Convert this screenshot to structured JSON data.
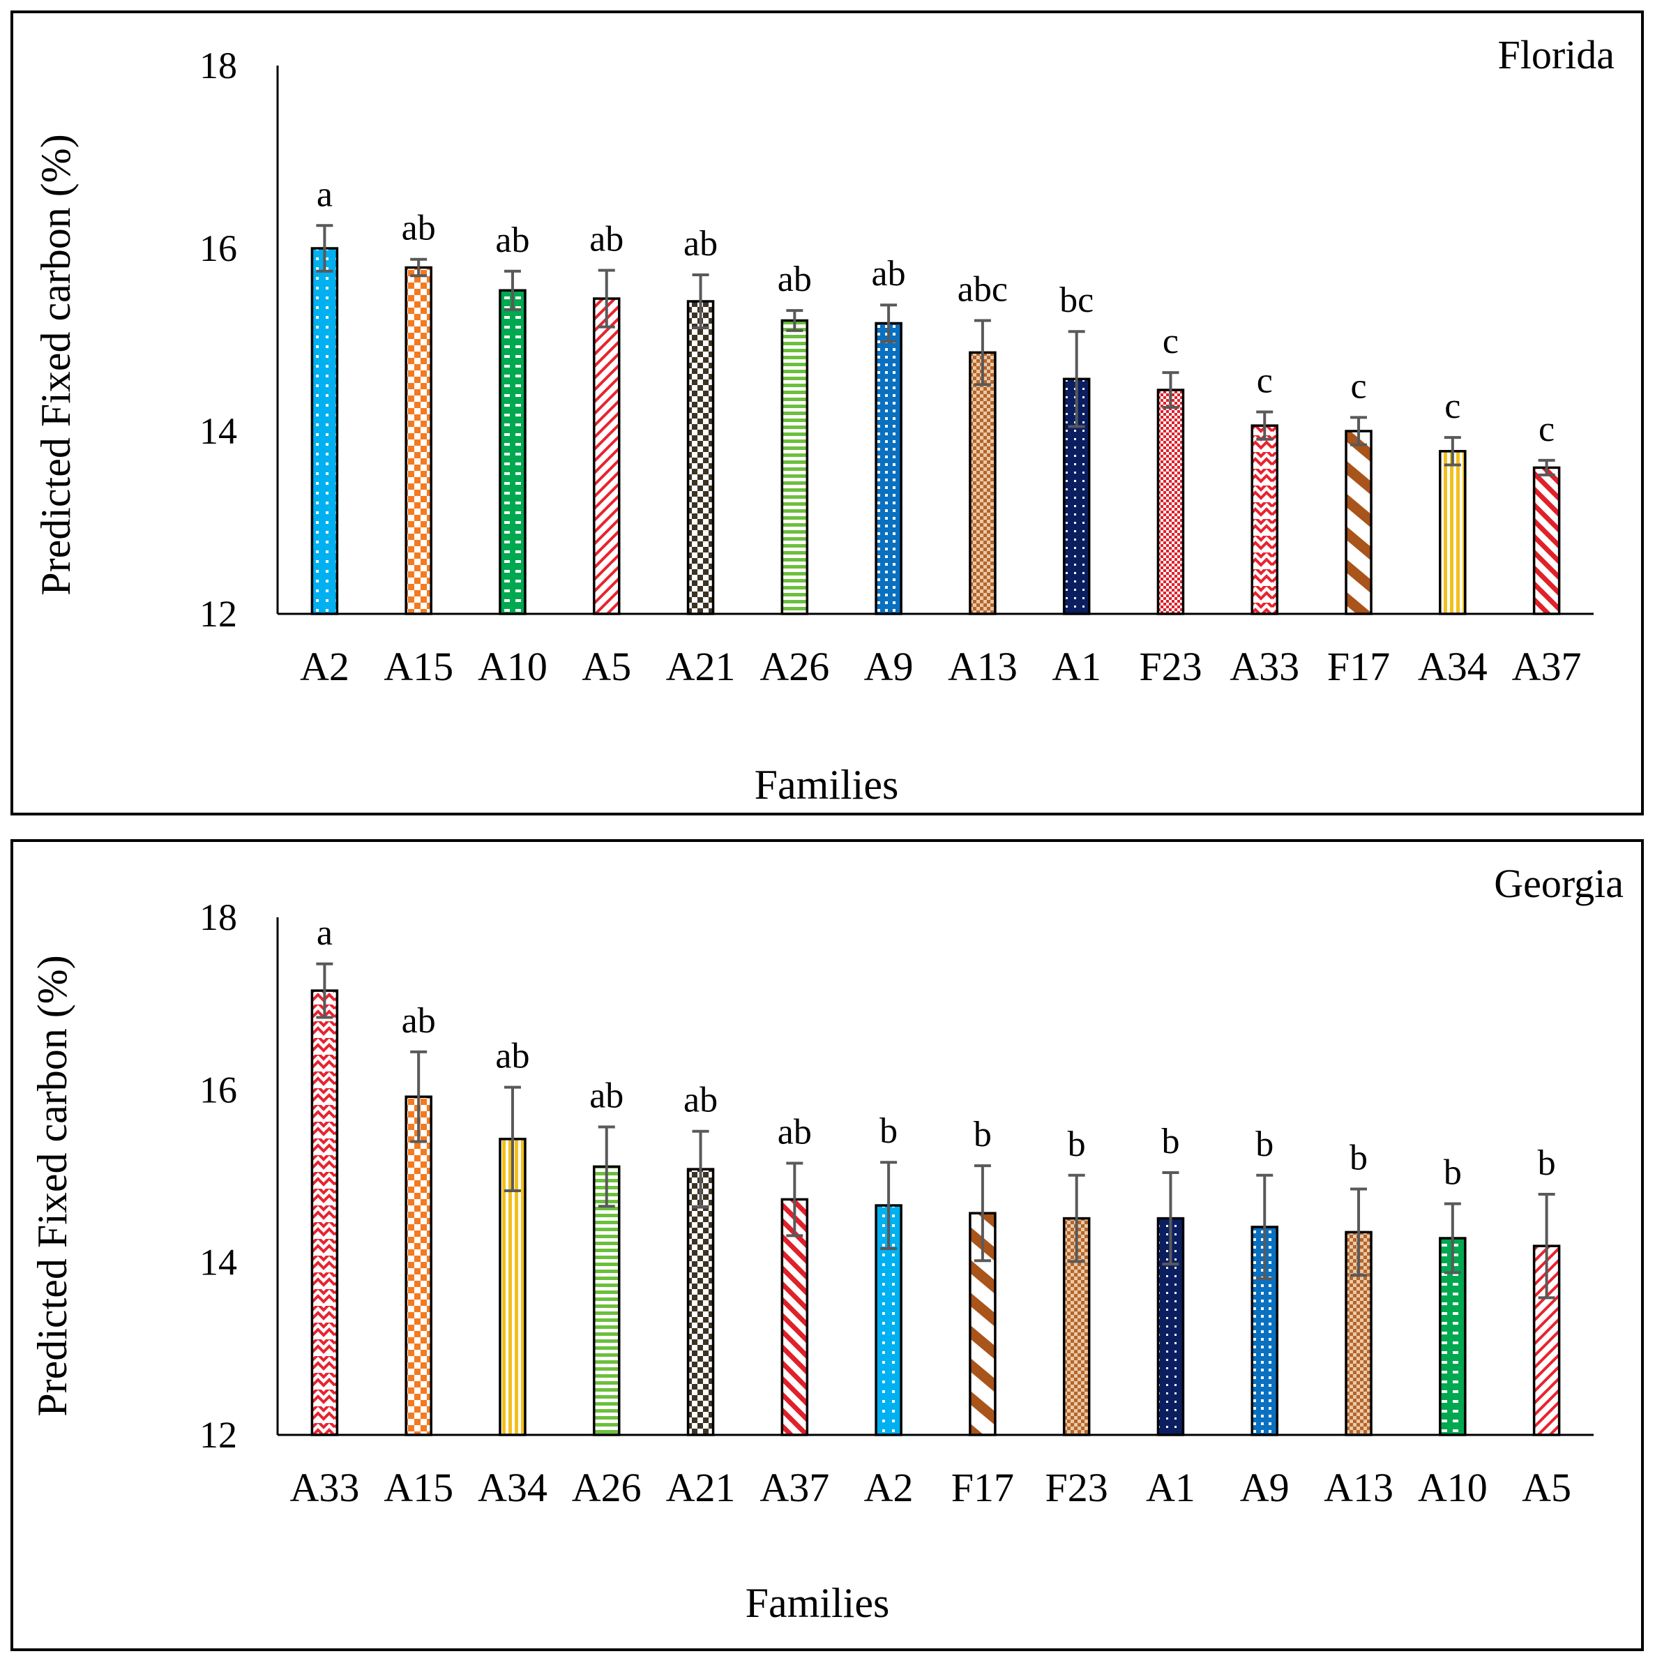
{
  "chart_data": [
    {
      "type": "bar",
      "title": "Florida",
      "xlabel": "Families",
      "ylabel": "Predicted Fixed carbon (%)",
      "ylim": [
        12,
        18
      ],
      "yticks": [
        "12",
        "14",
        "16",
        "18"
      ],
      "categories": [
        "A2",
        "A15",
        "A10",
        "A5",
        "A21",
        "A26",
        "A9",
        "A13",
        "A1",
        "F23",
        "A33",
        "F17",
        "A34",
        "A37"
      ],
      "values": [
        16.0,
        15.79,
        15.54,
        15.45,
        15.42,
        15.21,
        15.18,
        14.86,
        14.57,
        14.45,
        14.06,
        14.0,
        13.78,
        13.6
      ],
      "errors": [
        0.25,
        0.09,
        0.21,
        0.31,
        0.29,
        0.11,
        0.2,
        0.35,
        0.52,
        0.19,
        0.15,
        0.15,
        0.15,
        0.08
      ],
      "significance": [
        "a",
        "ab",
        "ab",
        "ab",
        "ab",
        "ab",
        "ab",
        "abc",
        "bc",
        "c",
        "c",
        "c",
        "c",
        "c"
      ],
      "colors": [
        "#00b0f0",
        "#f47a1f",
        "#00a84f",
        "#e8232f",
        "#3d3324",
        "#6cbf3c",
        "#0a70c0",
        "#b5652a",
        "#0b1f60",
        "#e0202a",
        "#e8232f",
        "#a9541a",
        "#f2c01d",
        "#e0202a"
      ],
      "patterns": [
        "dots",
        "squares",
        "hdash",
        "diag-thin",
        "checker",
        "hlines",
        "dots-dense",
        "grid",
        "dots-dark",
        "grid-fine",
        "zigzag",
        "diag-wide",
        "vlines",
        "diag-medium"
      ]
    },
    {
      "type": "bar",
      "title": "Georgia",
      "xlabel": "Families",
      "ylabel": "Predicted Fixed carbon (%)",
      "ylim": [
        12,
        18
      ],
      "yticks": [
        "12",
        "14",
        "16",
        "18"
      ],
      "categories": [
        "A33",
        "A15",
        "A34",
        "A26",
        "A21",
        "A37",
        "A2",
        "F17",
        "F23",
        "A1",
        "A9",
        "A13",
        "A10",
        "A5"
      ],
      "values": [
        17.15,
        15.92,
        15.43,
        15.11,
        15.08,
        14.73,
        14.66,
        14.57,
        14.51,
        14.51,
        14.41,
        14.35,
        14.28,
        14.19
      ],
      "errors": [
        0.31,
        0.52,
        0.6,
        0.46,
        0.44,
        0.42,
        0.5,
        0.55,
        0.5,
        0.53,
        0.6,
        0.5,
        0.4,
        0.6
      ],
      "significance": [
        "a",
        "ab",
        "ab",
        "ab",
        "ab",
        "ab",
        "b",
        "b",
        "b",
        "b",
        "b",
        "b",
        "b",
        "b"
      ],
      "colors": [
        "#e8232f",
        "#f47a1f",
        "#f2c01d",
        "#6cbf3c",
        "#3d3324",
        "#e0202a",
        "#00b0f0",
        "#a9541a",
        "#b5652a",
        "#0b1f60",
        "#0a70c0",
        "#b5652a",
        "#00a84f",
        "#e8232f"
      ],
      "patterns": [
        "zigzag",
        "squares",
        "vlines",
        "hlines",
        "checker",
        "diag-medium",
        "dots",
        "diag-wide",
        "grid",
        "dots-dark",
        "dots-dense",
        "grid",
        "hdash",
        "diag-thin"
      ]
    }
  ]
}
